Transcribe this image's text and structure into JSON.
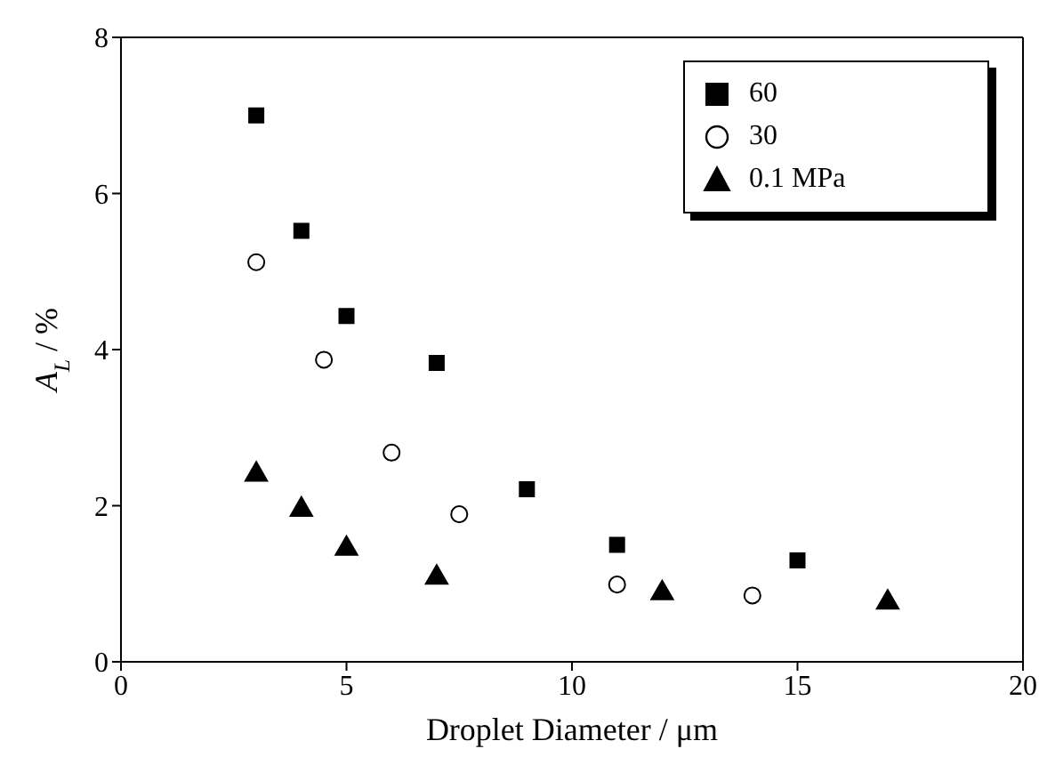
{
  "chart_data": {
    "type": "scatter",
    "xlabel": "Droplet Diameter / μm",
    "ylabel": "A$_{L}$ / %",
    "xlim": [
      0,
      20
    ],
    "xticks": [
      0,
      5,
      10,
      15,
      20
    ],
    "ylim": [
      0,
      8
    ],
    "yticks": [
      0,
      2,
      4,
      6,
      8
    ],
    "grid": false,
    "legend": "top right",
    "series": [
      {
        "name": "60",
        "color": "#000000",
        "marker": "square",
        "x": [
          3,
          4,
          5,
          7,
          9,
          11,
          15
        ],
        "values": [
          7.0,
          5.52,
          4.43,
          3.83,
          2.21,
          1.5,
          1.3
        ]
      },
      {
        "name": "30",
        "color": "#000000",
        "marker": "circle",
        "x": [
          3,
          4.5,
          6,
          7.5,
          11,
          14
        ],
        "values": [
          5.12,
          3.87,
          2.68,
          1.89,
          0.99,
          0.85
        ]
      },
      {
        "name": "0.1 MPa",
        "color": "#000000",
        "marker": "triangle",
        "x": [
          3,
          4,
          5,
          7,
          12,
          17
        ],
        "values": [
          2.4,
          1.95,
          1.45,
          1.08,
          0.88,
          0.76
        ]
      }
    ]
  }
}
